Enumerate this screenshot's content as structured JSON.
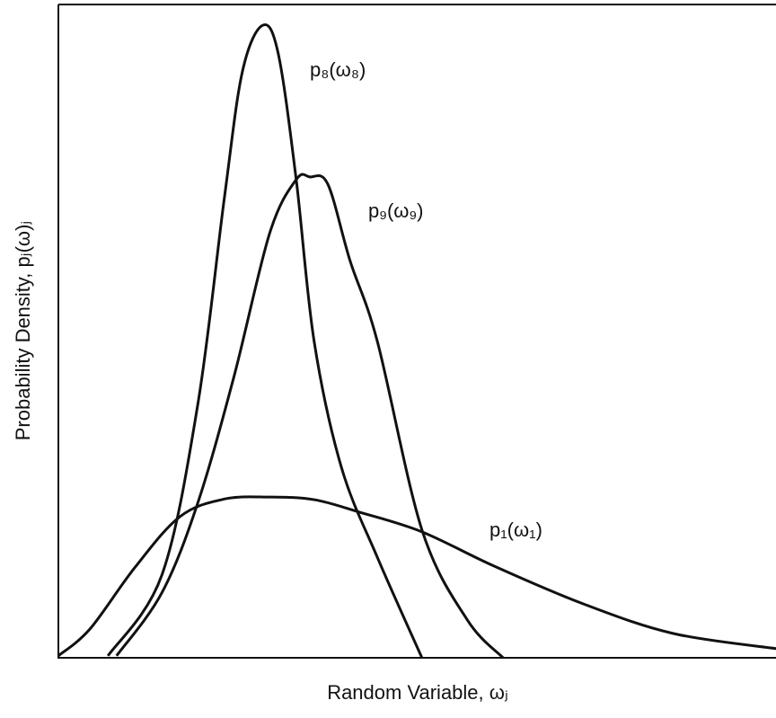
{
  "chart_data": {
    "type": "line",
    "x_label": "Random Variable, ωⱼ",
    "y_label": "Probability Density, pⱼ(ω)ⱼ",
    "xlim": [
      0,
      100
    ],
    "ylim": [
      0,
      100
    ],
    "color": "#111111",
    "series": [
      {
        "name": "p₈(ω₈)",
        "x": [
          6.9,
          14.4,
          19.4,
          23.1,
          25.6,
          28.4,
          30.6,
          33.1,
          35.6,
          39.4,
          44.4,
          50.6
        ],
        "values": [
          0.3,
          12.6,
          38.6,
          70.1,
          89.3,
          96.4,
          92.1,
          72.9,
          48.2,
          29.0,
          15.3,
          0
        ]
      },
      {
        "name": "p₉(ω₉)",
        "x": [
          8.1,
          14.4,
          19.4,
          24.4,
          29.4,
          33.1,
          35,
          37.5,
          40.6,
          44.4,
          50.6,
          56.9,
          61.9
        ],
        "values": [
          0.3,
          9.9,
          23.6,
          42.7,
          64.7,
          72.9,
          73.3,
          72.2,
          60.5,
          48.2,
          19.5,
          5.8,
          0
        ]
      },
      {
        "name": "p₁(ω₁)",
        "x": [
          0,
          4.4,
          10.6,
          16.9,
          23.1,
          29.4,
          35.6,
          41.9,
          50.6,
          60.6,
          73.1,
          85.6,
          99.9
        ],
        "values": [
          0.3,
          4.4,
          13.7,
          21.5,
          24.2,
          24.5,
          24.1,
          22.2,
          19.2,
          14.0,
          8.2,
          3.7,
          1.4
        ]
      }
    ]
  }
}
